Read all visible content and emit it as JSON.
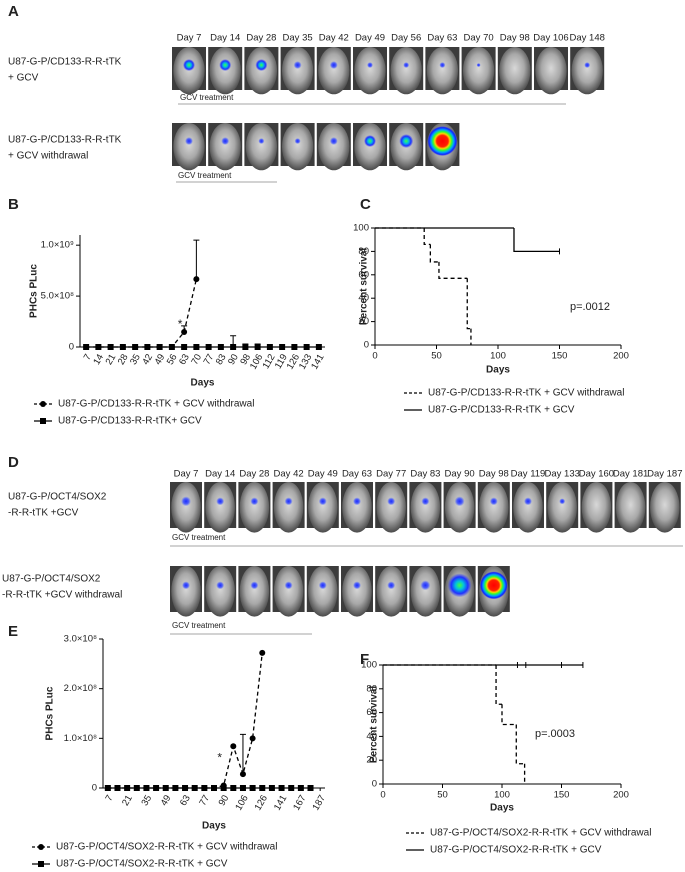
{
  "image_panels": [
    {
      "letter": "A",
      "days": [
        "Day 7",
        "Day 14",
        "Day 28",
        "Day 35",
        "Day 42",
        "Day 49",
        "Day 56",
        "Day 63",
        "Day 70",
        "Day 98",
        "Day 106",
        "Day 148"
      ],
      "rows": [
        {
          "label": [
            "U87-G-P/CD133-R-R-tTK",
            "+ GCV"
          ],
          "treatment": "GCV treatment"
        },
        {
          "label": [
            "U87-G-P/CD133-R-R-tTK",
            "+ GCV withdrawal"
          ],
          "treatment": "GCV treatment"
        }
      ]
    },
    {
      "letter": "D",
      "days": [
        "Day 7",
        "Day 14",
        "Day 28",
        "Day 42",
        "Day 49",
        "Day 63",
        "Day 77",
        "Day 83",
        "Day 90",
        "Day 98",
        "Day 119",
        "Day 133",
        "Day 160",
        "Day 181",
        "Day 187"
      ],
      "rows": [
        {
          "label": [
            "U87-G-P/OCT4/SOX2",
            "-R-R-tTK +GCV"
          ],
          "treatment": "GCV treatment"
        },
        {
          "label": [
            "U87-G-P/OCT4/SOX2",
            "-R-R-tTK +GCV withdrawal"
          ],
          "treatment": "GCV treatment"
        }
      ]
    }
  ],
  "chart_data": [
    {
      "type": "line",
      "letter": "B",
      "y_label": "PHCs PLuc",
      "x_label": "Days",
      "annotations": [
        "*"
      ],
      "legend": "bottom",
      "categories": [
        7,
        14,
        21,
        28,
        35,
        42,
        49,
        56,
        63,
        70,
        77,
        83,
        90,
        98,
        106,
        112,
        119,
        126,
        133,
        141
      ],
      "ylim": [
        0,
        1100000000
      ],
      "yticks": [
        0,
        {
          "value": 500000000,
          "label": "5.0×10⁸"
        },
        {
          "value": 1000000000,
          "label": "1.0×10⁹"
        }
      ],
      "series": [
        {
          "name": "U87-G-P/CD133-R-R-tTK + GCV withdrawal",
          "color": "#000000",
          "dash": true,
          "marker": "circle",
          "values": [
            0,
            0,
            0,
            0,
            0,
            0,
            0,
            0,
            147000000,
            667000000,
            null,
            null,
            null,
            null,
            null,
            null,
            null,
            null,
            null,
            null
          ],
          "errors": [
            null,
            null,
            null,
            null,
            null,
            null,
            null,
            null,
            60000000,
            383000000,
            null,
            null,
            null,
            null,
            null,
            null,
            null,
            null,
            null,
            null
          ]
        },
        {
          "name": "U87-G-P/CD133-R-R-tTK+ GCV",
          "color": "#000000",
          "dash": false,
          "marker": "square",
          "values": [
            0,
            0,
            0,
            0,
            0,
            0,
            0,
            0,
            0,
            0,
            0,
            0,
            0,
            0,
            0,
            0,
            0,
            0,
            0,
            0
          ],
          "errors": [
            null,
            null,
            null,
            null,
            null,
            null,
            null,
            null,
            null,
            null,
            null,
            null,
            110000000,
            30000000,
            30000000,
            null,
            null,
            null,
            null,
            null
          ]
        }
      ]
    },
    {
      "type": "step",
      "letter": "C",
      "y_label": "Percent survival",
      "x_label": "Days",
      "annotations": [
        "p=.0012"
      ],
      "legend": "bottom",
      "xlim": [
        0,
        200
      ],
      "xticks": [
        0,
        50,
        100,
        150,
        200
      ],
      "ylim": [
        0,
        100
      ],
      "yticks": [
        0,
        20,
        40,
        60,
        80,
        100
      ],
      "series": [
        {
          "name": "U87-G-P/CD133-R-R-tTK + GCV withdrawal",
          "color": "#000000",
          "dash": true,
          "x": [
            0,
            40,
            45,
            52,
            75,
            78
          ],
          "values": [
            100,
            86,
            71,
            57,
            14,
            0
          ]
        },
        {
          "name": "U87-G-P/CD133-R-R-tTK + GCV",
          "color": "#000000",
          "dash": false,
          "x": [
            0,
            113,
            150
          ],
          "values": [
            100,
            80,
            80
          ],
          "censored": [
            150
          ]
        }
      ]
    },
    {
      "type": "line",
      "letter": "E",
      "y_label": "PHCs PLuc",
      "x_label": "Days",
      "annotations": [
        "*"
      ],
      "legend": "bottom",
      "categories": [
        7,
        null,
        21,
        null,
        35,
        null,
        49,
        null,
        63,
        null,
        77,
        null,
        90,
        null,
        106,
        null,
        126,
        null,
        141,
        null,
        167,
        null,
        187
      ],
      "ylim": [
        0,
        300000000
      ],
      "yticks": [
        0,
        {
          "value": 100000000,
          "label": "1.0×10⁸"
        },
        {
          "value": 200000000,
          "label": "2.0×10⁸"
        },
        {
          "value": 300000000,
          "label": "3.0×10⁸"
        }
      ],
      "series": [
        {
          "name": "U87-G-P/OCT4/SOX2-R-R-tTK + GCV withdrawal",
          "color": "#000000",
          "dash": true,
          "marker": "circle",
          "values": [
            0,
            0,
            0,
            0,
            0,
            0,
            0,
            0,
            0,
            0,
            0,
            0,
            5000000,
            84000000,
            28000000,
            100000000,
            272000000,
            null,
            null,
            null,
            null,
            null,
            null
          ],
          "errors": [
            null,
            null,
            null,
            null,
            null,
            null,
            null,
            null,
            null,
            null,
            null,
            null,
            null,
            null,
            80000000,
            null,
            null,
            null,
            null,
            null,
            null,
            null,
            null
          ]
        },
        {
          "name": "U87-G-P/OCT4/SOX2-R-R-tTK + GCV",
          "color": "#000000",
          "dash": false,
          "marker": "square",
          "values": [
            0,
            0,
            0,
            0,
            0,
            0,
            0,
            0,
            0,
            0,
            0,
            0,
            0,
            0,
            0,
            0,
            0,
            0,
            0,
            0,
            0,
            0,
            null
          ]
        }
      ]
    },
    {
      "type": "step",
      "letter": "F",
      "y_label": "Percent survival",
      "x_label": "Days",
      "annotations": [
        "p=.0003"
      ],
      "legend": "bottom",
      "xlim": [
        0,
        200
      ],
      "xticks": [
        0,
        50,
        100,
        150,
        200
      ],
      "ylim": [
        0,
        100
      ],
      "yticks": [
        0,
        20,
        40,
        60,
        80,
        100
      ],
      "series": [
        {
          "name": "U87-G-P/OCT4/SOX2-R-R-tTK + GCV withdrawal",
          "color": "#000000",
          "dash": true,
          "x": [
            0,
            95,
            100,
            112,
            119
          ],
          "values": [
            100,
            67,
            50,
            17,
            0
          ]
        },
        {
          "name": "U87-G-P/OCT4/SOX2-R-R-tTK + GCV",
          "color": "#000000",
          "dash": false,
          "x": [
            0,
            168
          ],
          "values": [
            100,
            100
          ],
          "censored": [
            113,
            120,
            150,
            168
          ]
        }
      ]
    }
  ]
}
